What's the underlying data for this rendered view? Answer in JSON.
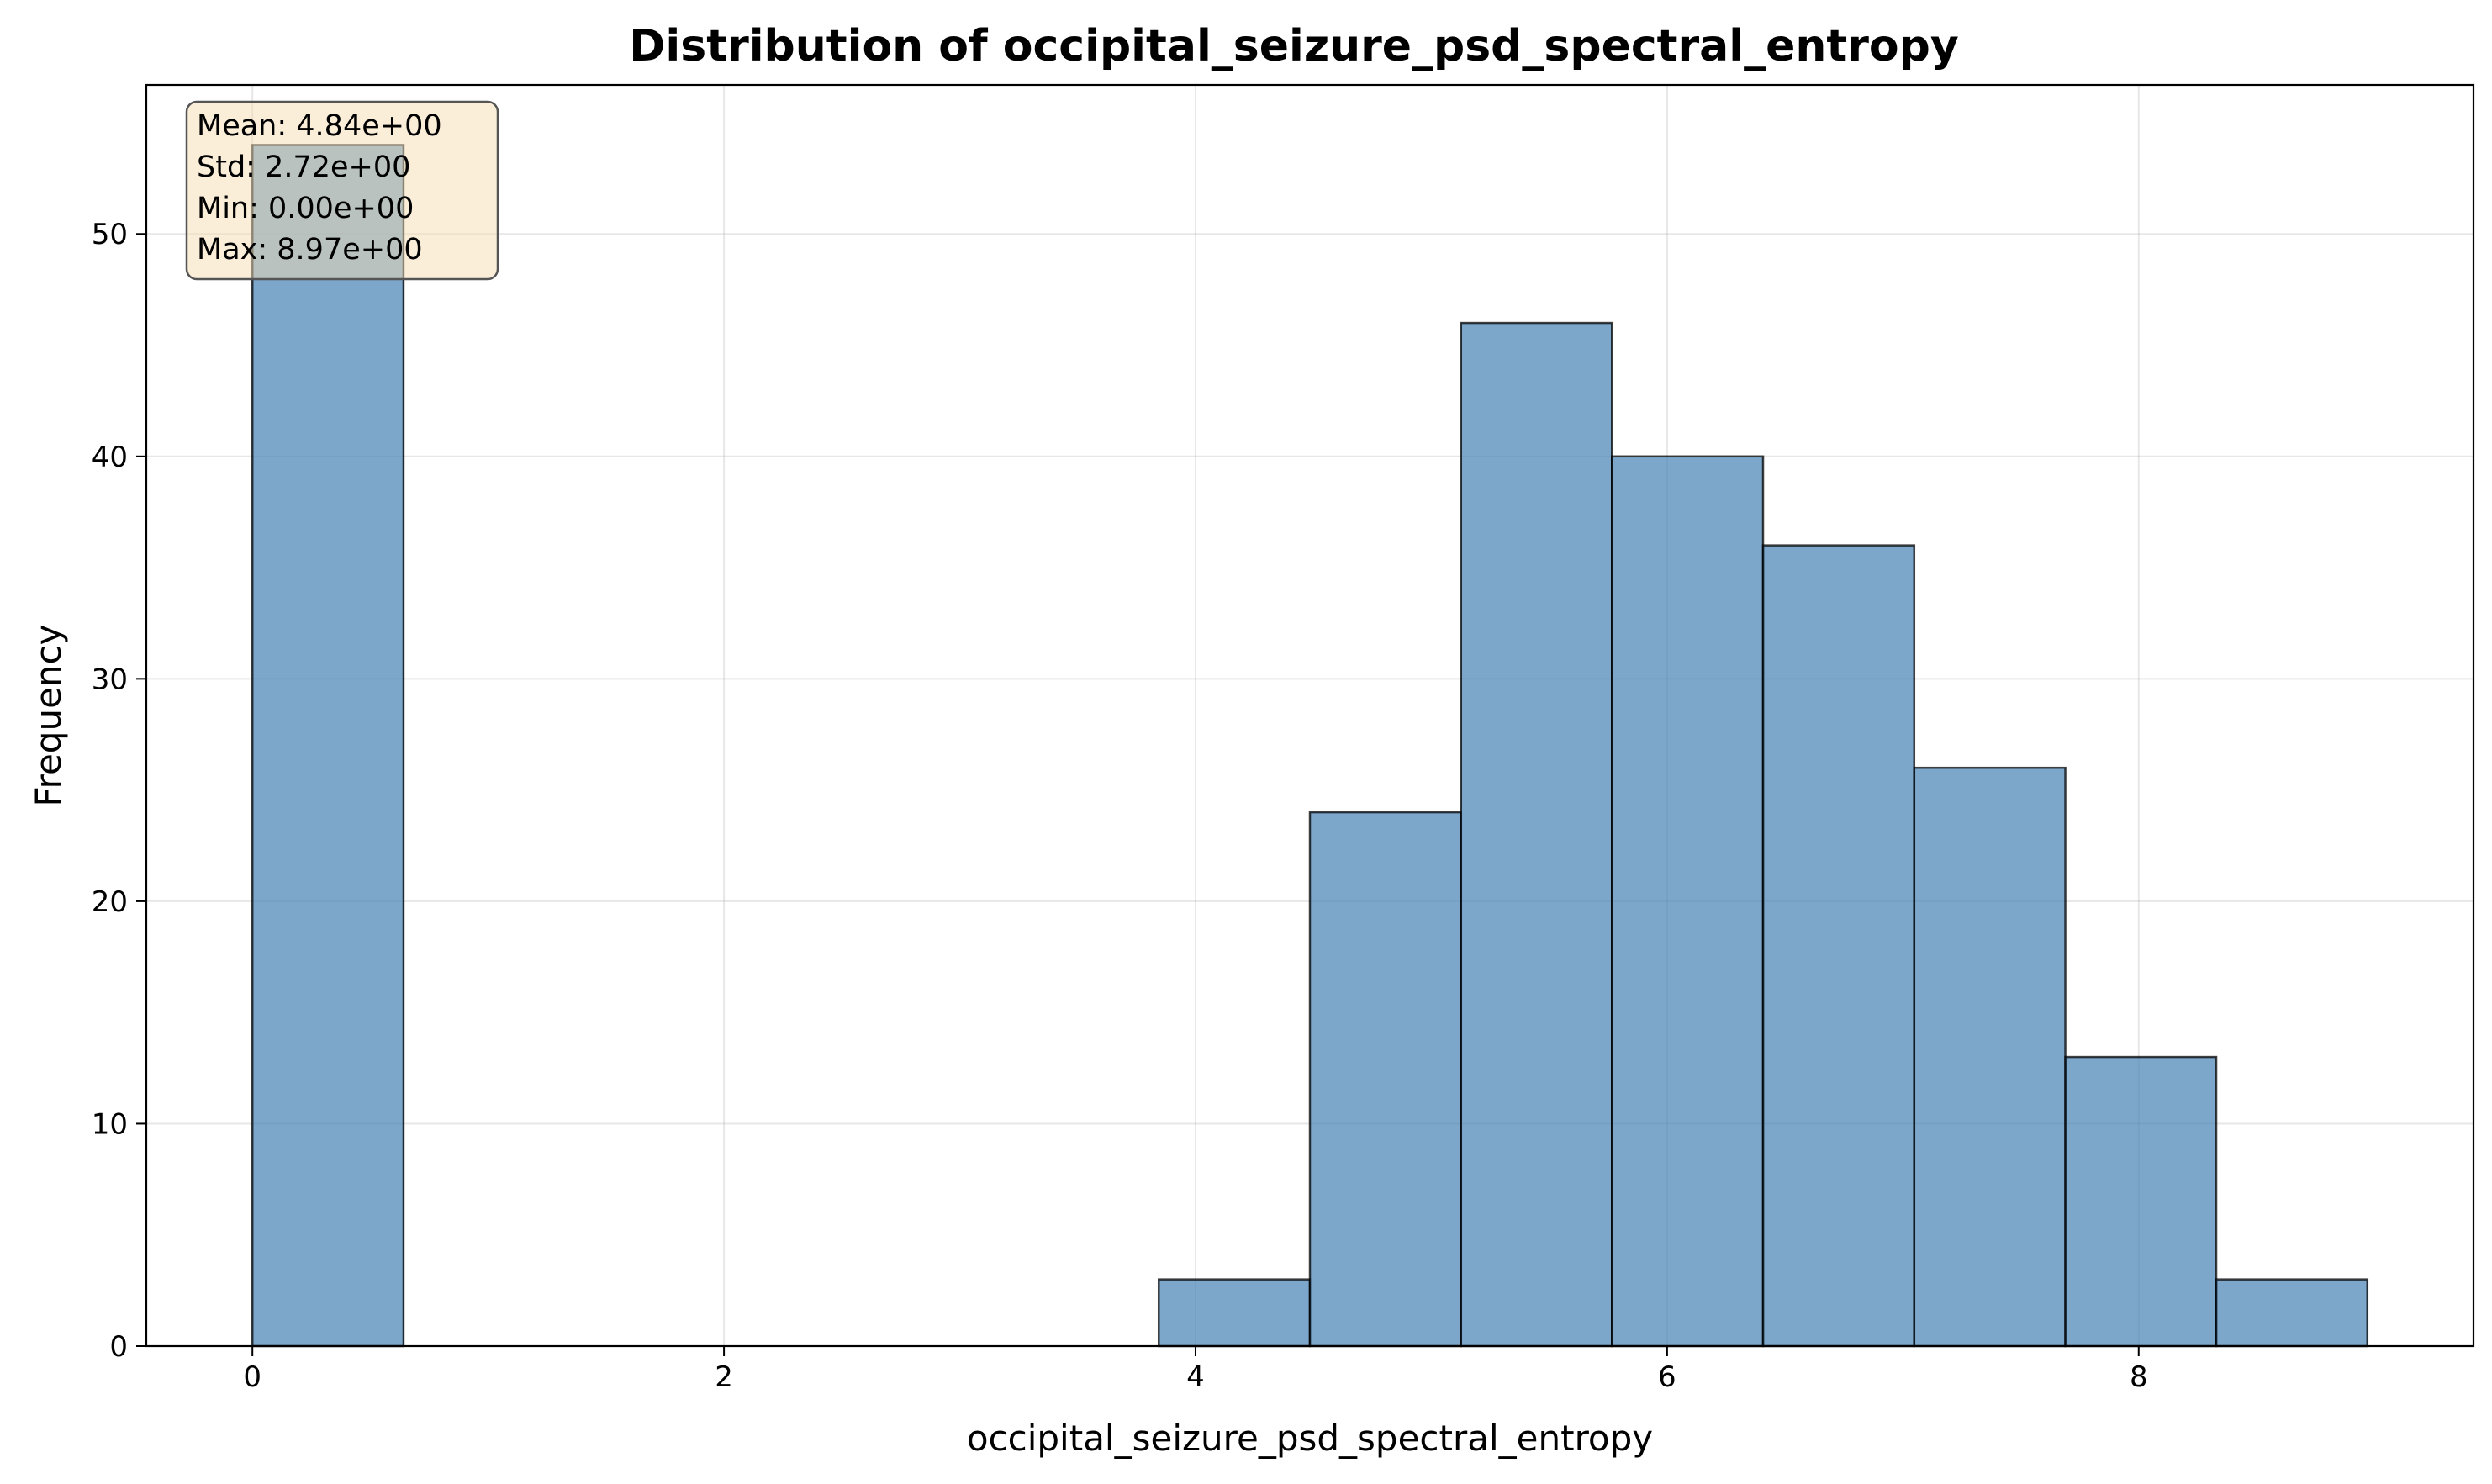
{
  "chart_data": {
    "type": "bar",
    "subtype": "histogram",
    "title": "Distribution of occipital_seizure_psd_spectral_entropy",
    "xlabel": "occipital_seizure_psd_spectral_entropy",
    "ylabel": "Frequency",
    "xlim": [
      -0.45,
      9.42
    ],
    "ylim": [
      0,
      56.7
    ],
    "xticks": [
      0,
      2,
      4,
      6,
      8
    ],
    "yticks": [
      0,
      10,
      20,
      30,
      40,
      50
    ],
    "grid": true,
    "bins": [
      {
        "x0": 0.0,
        "x1": 0.641,
        "count": 54
      },
      {
        "x0": 0.641,
        "x1": 1.281,
        "count": 0
      },
      {
        "x0": 1.281,
        "x1": 1.922,
        "count": 0
      },
      {
        "x0": 1.922,
        "x1": 2.563,
        "count": 0
      },
      {
        "x0": 2.563,
        "x1": 3.204,
        "count": 0
      },
      {
        "x0": 3.204,
        "x1": 3.844,
        "count": 0
      },
      {
        "x0": 3.844,
        "x1": 4.485,
        "count": 3
      },
      {
        "x0": 4.485,
        "x1": 5.126,
        "count": 24
      },
      {
        "x0": 5.126,
        "x1": 5.766,
        "count": 46
      },
      {
        "x0": 5.766,
        "x1": 6.407,
        "count": 40
      },
      {
        "x0": 6.407,
        "x1": 7.048,
        "count": 36
      },
      {
        "x0": 7.048,
        "x1": 7.689,
        "count": 26
      },
      {
        "x0": 7.689,
        "x1": 8.329,
        "count": 13
      },
      {
        "x0": 8.329,
        "x1": 8.97,
        "count": 3
      }
    ],
    "bar_color": "#4682b4",
    "stats_box": {
      "lines": [
        "Mean: 4.84e+00",
        "Std: 2.72e+00",
        "Min: 0.00e+00",
        "Max: 8.97e+00"
      ],
      "placement": "top-left",
      "background_color": "#f5deb3"
    }
  }
}
